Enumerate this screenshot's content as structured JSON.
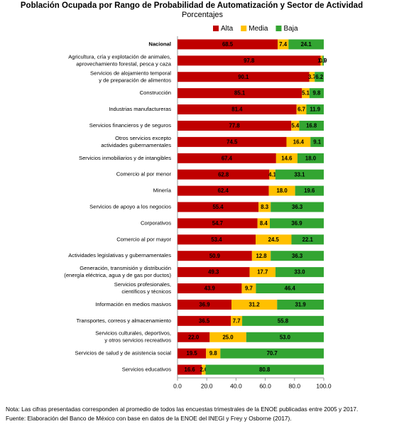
{
  "chart_data": {
    "type": "stacked-bar-horizontal",
    "title": "Población Ocupada por Rango de Probabilidad de Automatización y Sector de Actividad",
    "subtitle": "Porcentajes",
    "categories": [
      [
        "Nacional"
      ],
      [
        "Agricultura, cría y explotación de animales,",
        "aprovechamiento forestal, pesca y caza"
      ],
      [
        "Servicios de alojamiento temporal",
        "y de preparación de alimentos"
      ],
      [
        "Construcción"
      ],
      [
        "Industrias manufactureras"
      ],
      [
        "Servicios financieros y de seguros"
      ],
      [
        "Otros servicios excepto",
        "actividades gubernamentales"
      ],
      [
        "Servicios inmobiliarios y de intangibles"
      ],
      [
        "Comercio al por menor"
      ],
      [
        "Minería"
      ],
      [
        "Servicios de apoyo a los negocios"
      ],
      [
        "Corporativos"
      ],
      [
        "Comercio al por mayor"
      ],
      [
        "Actividades legislativas y gubernamentales"
      ],
      [
        "Generación, transmisión y distribución",
        "(energía eléctrica, agua y de gas por ductos)"
      ],
      [
        "Servicios profesionales,",
        "científicos y técnicos"
      ],
      [
        "Información en medios masivos"
      ],
      [
        "Transportes, correos y almacenamiento"
      ],
      [
        "Servicios culturales, deportivos,",
        "y otros servicios recreativos"
      ],
      [
        "Servicios de salud y de asistencia social"
      ],
      [
        "Servicios educativos"
      ]
    ],
    "series": [
      {
        "name": "Alta",
        "color": "#c00000",
        "values": [
          68.5,
          97.8,
          90.1,
          85.1,
          81.4,
          77.8,
          74.5,
          67.4,
          62.8,
          62.4,
          55.4,
          54.7,
          53.4,
          50.9,
          49.3,
          43.9,
          36.9,
          36.5,
          22.0,
          19.5,
          16.6
        ],
        "value_labels": [
          "68.5",
          "97.8",
          "90.1",
          "85.1",
          "81.4",
          "77.8",
          "74.5",
          "67.4",
          "62.8",
          "62.4",
          "55.4",
          "54.7",
          "53.4",
          "50.9",
          "49.3",
          "43.9",
          "36.9",
          "36.5",
          "22.0",
          "19.5",
          "16.6"
        ]
      },
      {
        "name": "Media",
        "color": "#ffc000",
        "values": [
          7.4,
          1.3,
          3.7,
          5.1,
          6.7,
          5.4,
          16.4,
          14.6,
          4.1,
          18.0,
          8.3,
          8.4,
          24.5,
          12.8,
          17.7,
          9.7,
          31.2,
          7.7,
          25.0,
          9.8,
          2.6
        ],
        "value_labels": [
          "7.4",
          "1.3",
          "3.7",
          "5.1",
          "6.7",
          "5.4",
          "16.4",
          "14.6",
          "4.1",
          "18.0",
          "8.3",
          "8.4",
          "24.5",
          "12.8",
          "17.7",
          "9.7",
          "31.2",
          "7.7",
          "25.0",
          "9.8",
          "2.6"
        ]
      },
      {
        "name": "Baja",
        "color": "#33a532",
        "values": [
          24.1,
          0.9,
          6.2,
          9.8,
          11.9,
          16.8,
          9.1,
          18.0,
          33.1,
          19.6,
          36.3,
          36.9,
          22.1,
          36.3,
          33.0,
          46.4,
          31.9,
          55.8,
          53.0,
          70.7,
          80.8
        ],
        "value_labels": [
          "24.1",
          "0.9",
          "6.2",
          "9.8",
          "11.9",
          "16.8",
          "9.1",
          "18.0",
          "33.1",
          "19.6",
          "36.3",
          "36.9",
          "22.1",
          "36.3",
          "33.0",
          "46.4",
          "31.9",
          "55.8",
          "53.0",
          "70.7",
          "80.8"
        ]
      }
    ],
    "xlim": [
      0,
      100
    ],
    "xticks": [
      {
        "value": 0,
        "label": "0.0"
      },
      {
        "value": 20,
        "label": "20.0"
      },
      {
        "value": 40,
        "label": "40.0"
      },
      {
        "value": 60,
        "label": "60.0"
      },
      {
        "value": 80,
        "label": "80.0"
      },
      {
        "value": 100,
        "label": "100.0"
      }
    ],
    "legend": "top",
    "note": "Nota: Las cifras presentadas corresponden al promedio de todos las encuestas trimestrales de la ENOE publicadas entre 2005 y 2017.",
    "source": "Fuente: Elaboración del Banco de México con base en datos de la ENOE del INEGI y Frey y Osborne (2017)."
  }
}
